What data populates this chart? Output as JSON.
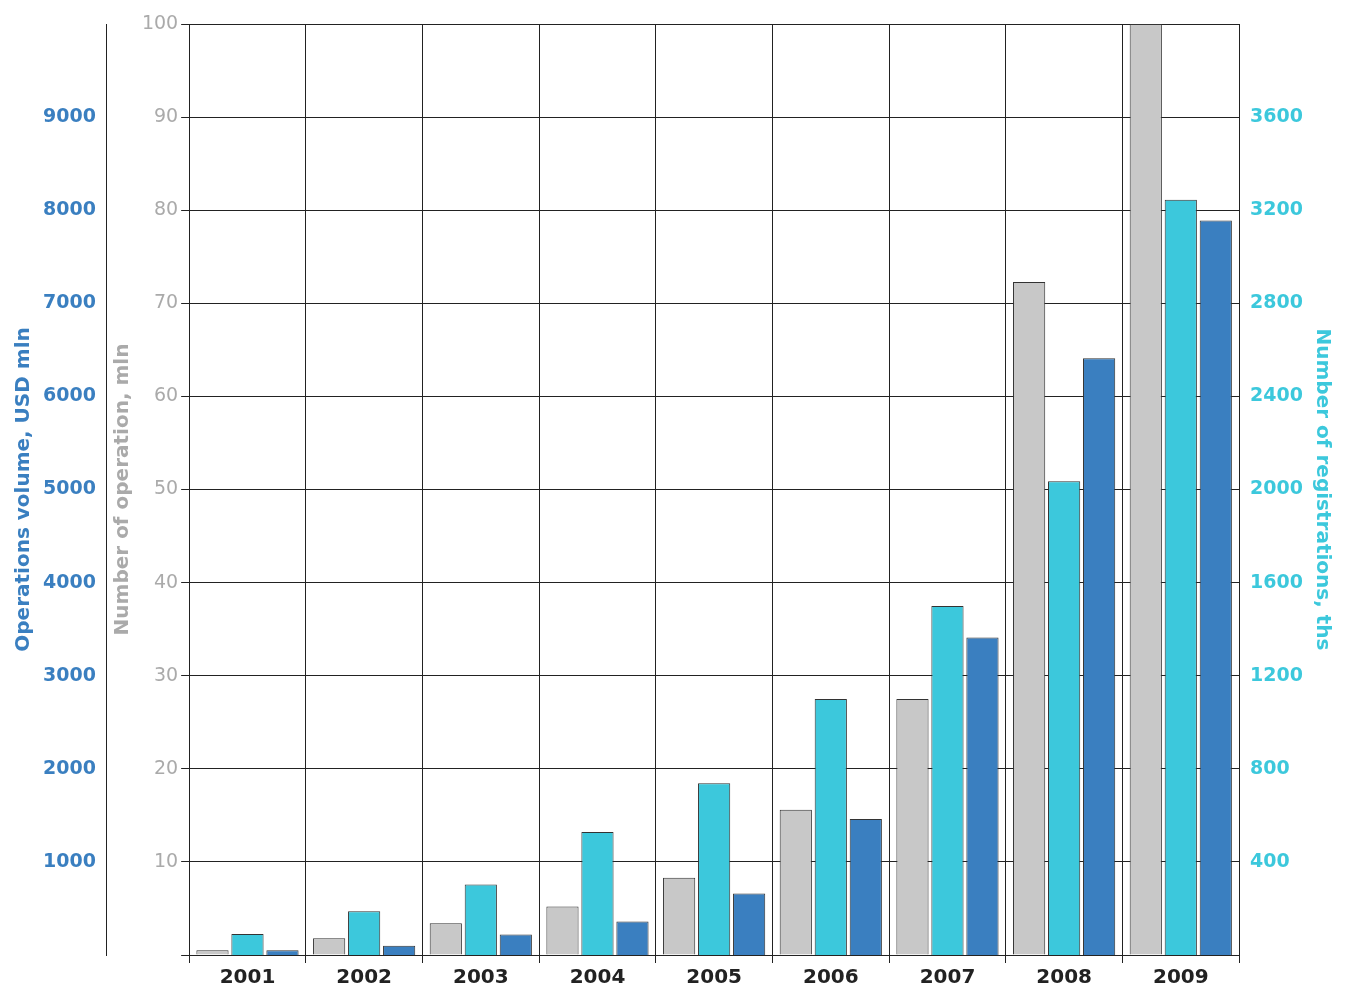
{
  "chart_data": {
    "type": "bar",
    "categories": [
      "2001",
      "2002",
      "2003",
      "2004",
      "2005",
      "2006",
      "2007",
      "2008",
      "2009"
    ],
    "ylabel": "Number of operation, mln",
    "y2label": "Operations volume, USD mln",
    "y3label": "Number of registrations, ths",
    "series": [
      {
        "color": "#c8c8c8",
        "axis": "y",
        "values": [
          0.5,
          1.8,
          3.4,
          5.2,
          8.3,
          15.6,
          27.5,
          72.3,
          100
        ]
      },
      {
        "color": "#3cc8dc",
        "axis": "y3",
        "values": [
          90,
          188,
          303,
          528,
          738,
          1100,
          1500,
          2035,
          3245
        ]
      },
      {
        "color": "#3a7fc0",
        "axis": "y2",
        "values": [
          50,
          100,
          220,
          360,
          660,
          1460,
          3410,
          6410,
          7890
        ]
      }
    ],
    "ylim": [
      0,
      100
    ],
    "yticks": [
      {
        "value": 0,
        "label": null
      },
      10,
      20,
      30,
      40,
      50,
      60,
      70,
      80,
      90,
      100
    ],
    "y2lim": [
      0,
      10000
    ],
    "y2ticks": [
      1000,
      2000,
      3000,
      4000,
      5000,
      6000,
      7000,
      8000,
      9000
    ],
    "y3lim": [
      0,
      4000
    ],
    "y3ticks": [
      400,
      800,
      1200,
      1600,
      2000,
      2400,
      2800,
      3200,
      3600
    ],
    "grid": true
  }
}
